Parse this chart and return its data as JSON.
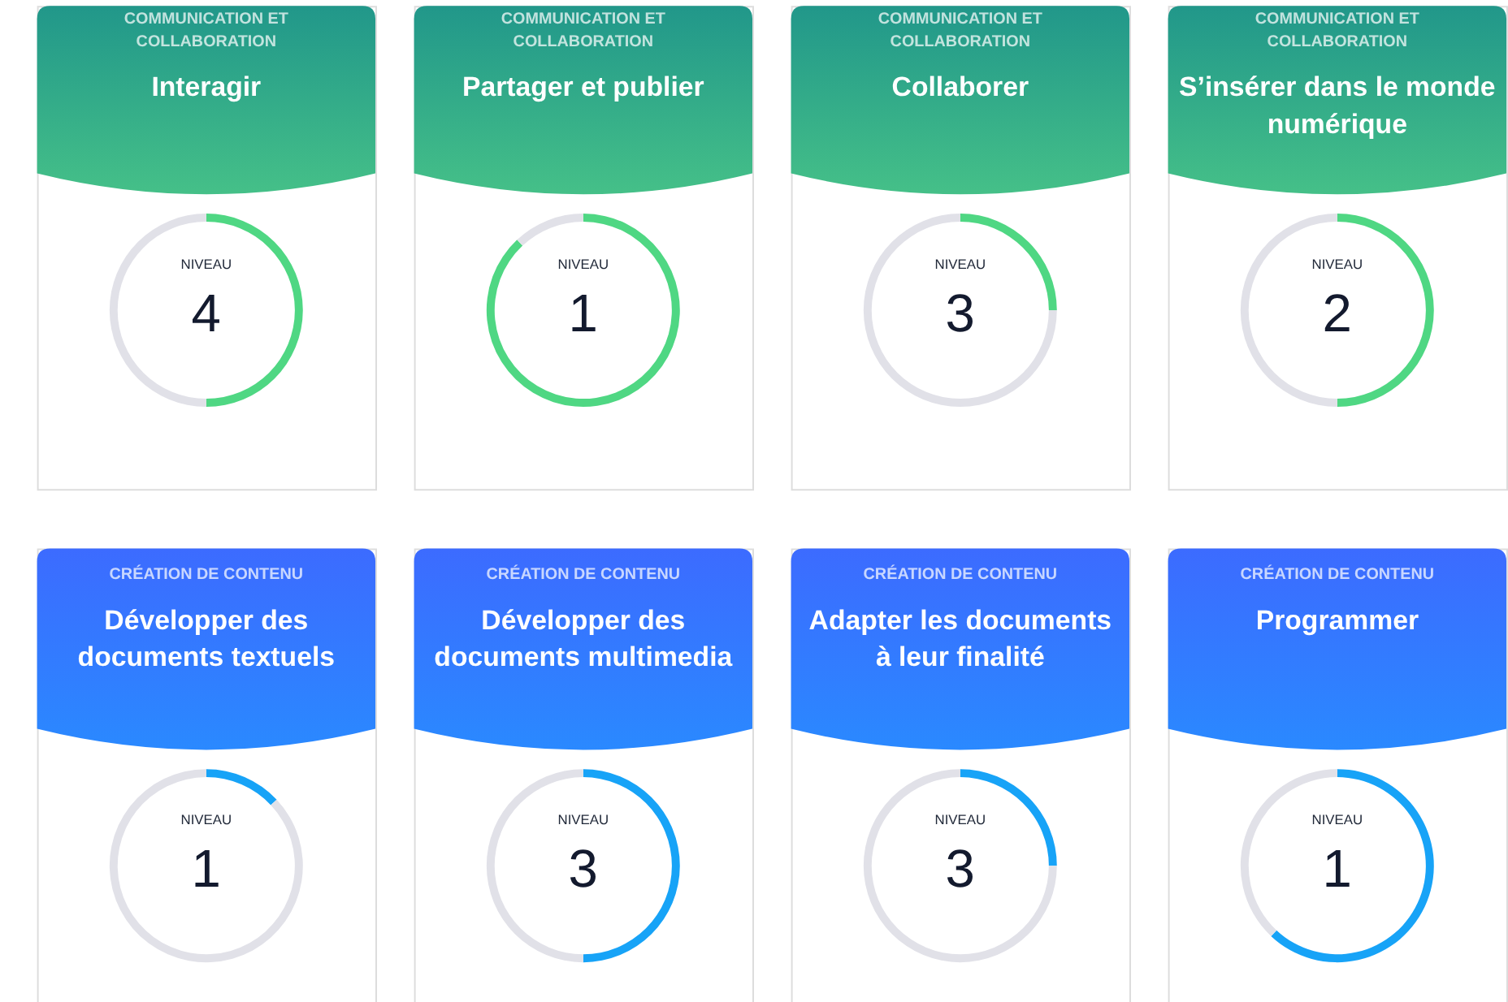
{
  "chart_data": [
    {
      "type": "donut",
      "subtitle": "COMMUNICATION ET COLLABORATION",
      "title": "Interagir",
      "categories": [
        null,
        null
      ],
      "values": [
        50,
        50
      ],
      "colors": [
        "#4fd783",
        "#e1e1e8"
      ],
      "annotations": [
        "NIVEAU",
        "4"
      ]
    },
    {
      "type": "donut",
      "subtitle": "COMMUNICATION ET COLLABORATION",
      "title": "Partager et publier",
      "categories": [
        null,
        null
      ],
      "values": [
        88,
        12
      ],
      "colors": [
        "#4fd783",
        "#e1e1e8"
      ],
      "annotations": [
        "NIVEAU",
        "1"
      ]
    },
    {
      "type": "donut",
      "subtitle": "COMMUNICATION ET COLLABORATION",
      "title": "Collaborer",
      "categories": [
        null,
        null
      ],
      "values": [
        25,
        75
      ],
      "colors": [
        "#4fd783",
        "#e1e1e8"
      ],
      "annotations": [
        "NIVEAU",
        "3"
      ]
    },
    {
      "type": "donut",
      "subtitle": "COMMUNICATION ET COLLABORATION",
      "title": "S’insérer dans le monde numérique",
      "categories": [
        null,
        null
      ],
      "values": [
        50,
        50
      ],
      "colors": [
        "#4fd783",
        "#e1e1e8"
      ],
      "annotations": [
        "NIVEAU",
        "2"
      ]
    },
    {
      "type": "donut",
      "subtitle": "CRÉATION DE CONTENU",
      "title": "Développer des documents textuels",
      "categories": [
        null,
        null
      ],
      "values": [
        13,
        87
      ],
      "colors": [
        "#17a3f7",
        "#e1e1e8"
      ],
      "annotations": [
        "NIVEAU",
        "1"
      ]
    },
    {
      "type": "donut",
      "subtitle": "CRÉATION DE CONTENU",
      "title": "Développer des documents multimedia",
      "categories": [
        null,
        null
      ],
      "values": [
        50,
        50
      ],
      "colors": [
        "#17a3f7",
        "#e1e1e8"
      ],
      "annotations": [
        "NIVEAU",
        "3"
      ]
    },
    {
      "type": "donut",
      "subtitle": "CRÉATION DE CONTENU",
      "title": "Adapter les documents à leur finalité",
      "categories": [
        null,
        null
      ],
      "values": [
        25,
        75
      ],
      "colors": [
        "#17a3f7",
        "#e1e1e8"
      ],
      "annotations": [
        "NIVEAU",
        "3"
      ]
    },
    {
      "type": "donut",
      "subtitle": "CRÉATION DE CONTENU",
      "title": "Programmer",
      "categories": [
        null,
        null
      ],
      "values": [
        62,
        38
      ],
      "colors": [
        "#17a3f7",
        "#e1e1e8"
      ],
      "annotations": [
        "NIVEAU",
        "1"
      ]
    }
  ]
}
